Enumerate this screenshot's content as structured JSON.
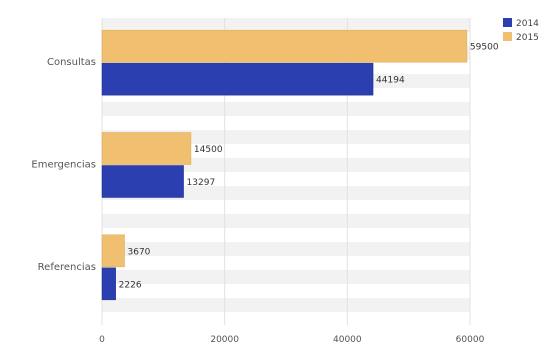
{
  "chart_data": {
    "type": "bar",
    "orientation": "horizontal",
    "categories": [
      "Consultas",
      "Emergencias",
      "Referencias"
    ],
    "series": [
      {
        "name": "2014",
        "color": "#2b3fb0",
        "values": [
          44194,
          13297,
          2226
        ],
        "labels": [
          "44194",
          "13297",
          "2226"
        ]
      },
      {
        "name": "2015",
        "color": "#f0c070",
        "values": [
          59500,
          14500,
          3670
        ],
        "labels": [
          "59500",
          "14500",
          "3670"
        ]
      }
    ],
    "x_ticks": [
      "0",
      "20000",
      "40000",
      "60000"
    ],
    "xlim": [
      0,
      60000
    ],
    "grid": true,
    "legend_position": "top-right"
  }
}
